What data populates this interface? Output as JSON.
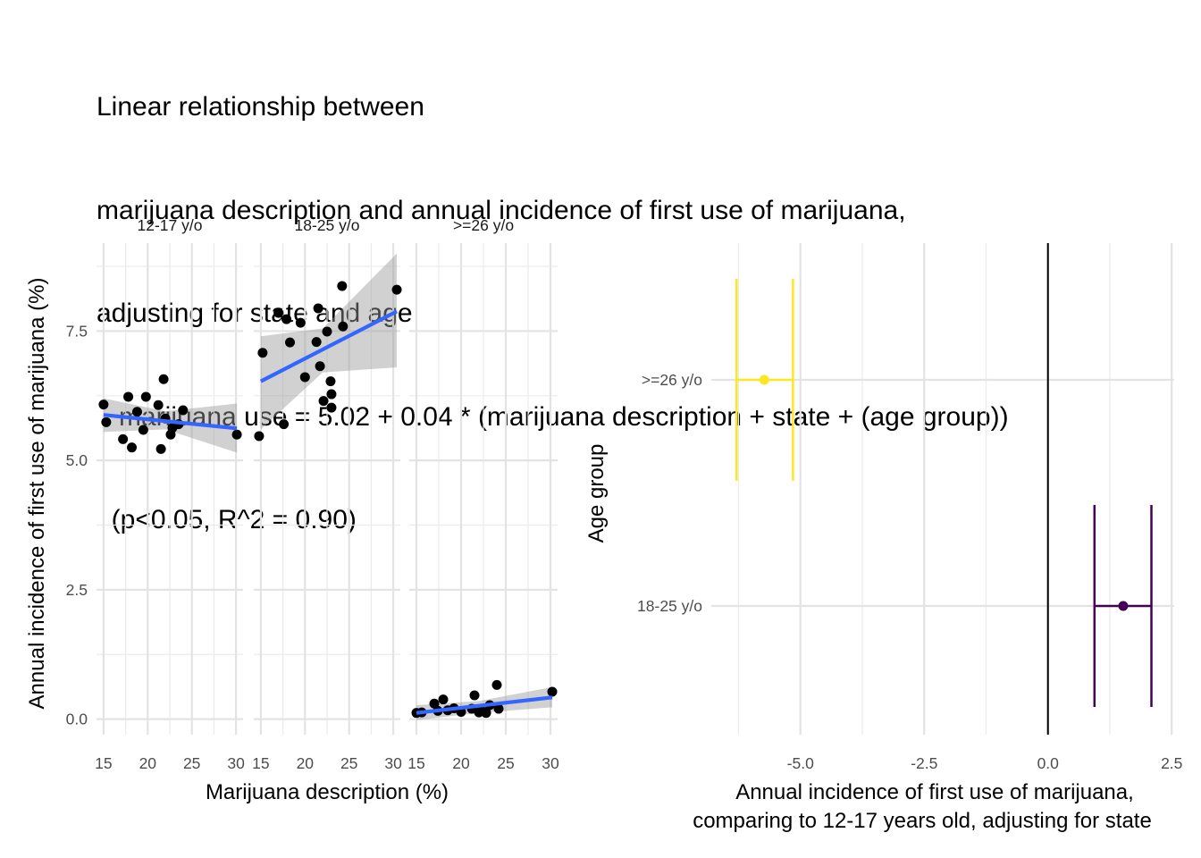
{
  "title_lines": [
    "Linear relationship between",
    "marijuana description and annual incidence of first use of marijuana,",
    "adjusting for state and age",
    "   marijuana use = 5.02 + 0.04 * (marijuana description + state + (age group))",
    "  (p<0.05, R^2 = 0.90)"
  ],
  "chart_data": [
    {
      "type": "scatter",
      "subtype": "faceted scatter with linear fit and confidence band",
      "xlabel": "Marijuana description (%)",
      "ylabel": "Annual incidence of first use of marijuana (%)",
      "xlim": [
        14.2,
        30.8
      ],
      "ylim": [
        -0.3,
        9.2
      ],
      "xticks": [
        15,
        20,
        25,
        30
      ],
      "xtick_labels": [
        "15",
        "20",
        "25",
        "30"
      ],
      "yticks": [
        0,
        2.5,
        5,
        7.5
      ],
      "ytick_labels": [
        "0.0",
        "2.5",
        "5.0",
        "7.5"
      ],
      "grid": true,
      "point_color": "#000000",
      "fit_color": "#3366ff",
      "band_color": "#999999",
      "facets": [
        {
          "label": "12-17 y/o",
          "points": [
            [
              15,
              6.08
            ],
            [
              15.3,
              5.74
            ],
            [
              17.2,
              5.41
            ],
            [
              17.8,
              6.23
            ],
            [
              18.2,
              5.25
            ],
            [
              18.8,
              5.94
            ],
            [
              19.5,
              5.59
            ],
            [
              19.8,
              6.23
            ],
            [
              21.2,
              6.07
            ],
            [
              21.5,
              5.22
            ],
            [
              21.8,
              6.57
            ],
            [
              22,
              5.81
            ],
            [
              22.6,
              5.5
            ],
            [
              22.8,
              5.63
            ],
            [
              23.5,
              5.7
            ],
            [
              24,
              5.97
            ],
            [
              30.1,
              5.5
            ]
          ],
          "fit": {
            "x": [
              15,
              30.1
            ],
            "y": [
              5.88,
              5.62
            ]
          },
          "band": {
            "x": [
              15,
              22,
              30.1
            ],
            "upper": [
              6.2,
              5.95,
              6.1
            ],
            "lower": [
              5.55,
              5.6,
              5.15
            ]
          }
        },
        {
          "label": "18-25 y/o",
          "points": [
            [
              14.8,
              5.47
            ],
            [
              15.2,
              7.08
            ],
            [
              17,
              7.85
            ],
            [
              17.6,
              5.7
            ],
            [
              17.9,
              7.73
            ],
            [
              18.3,
              7.28
            ],
            [
              19.5,
              7.66
            ],
            [
              20,
              6.61
            ],
            [
              21.3,
              7.29
            ],
            [
              21.5,
              7.94
            ],
            [
              21.7,
              6.82
            ],
            [
              22.1,
              6.15
            ],
            [
              22.5,
              7.49
            ],
            [
              22.9,
              6.53
            ],
            [
              23,
              6.28
            ],
            [
              23,
              6.02
            ],
            [
              24.3,
              7.59
            ],
            [
              30.4,
              8.3
            ],
            [
              24.2,
              8.37
            ]
          ],
          "fit": {
            "x": [
              15,
              30.4
            ],
            "y": [
              6.53,
              7.88
            ]
          },
          "band": {
            "x": [
              15,
              22,
              30.4
            ],
            "upper": [
              7.4,
              7.55,
              9.0
            ],
            "lower": [
              5.6,
              6.7,
              6.8
            ]
          }
        },
        {
          "label": ">=26 y/o",
          "points": [
            [
              15,
              0.12
            ],
            [
              15.6,
              0.13
            ],
            [
              17,
              0.3
            ],
            [
              17.4,
              0.16
            ],
            [
              18,
              0.38
            ],
            [
              18.5,
              0.17
            ],
            [
              19.2,
              0.21
            ],
            [
              20,
              0.14
            ],
            [
              21.2,
              0.2
            ],
            [
              21.5,
              0.46
            ],
            [
              22,
              0.13
            ],
            [
              22.3,
              0.16
            ],
            [
              22.8,
              0.12
            ],
            [
              23.2,
              0.27
            ],
            [
              24,
              0.66
            ],
            [
              24.2,
              0.2
            ],
            [
              30.2,
              0.53
            ]
          ],
          "fit": {
            "x": [
              15,
              30.2
            ],
            "y": [
              0.12,
              0.42
            ]
          },
          "band": {
            "x": [
              15,
              22,
              30.2
            ],
            "upper": [
              0.27,
              0.35,
              0.62
            ],
            "lower": [
              -0.02,
              0.12,
              0.23
            ]
          }
        }
      ]
    },
    {
      "type": "scatter",
      "subtype": "coefficient plot with error bars",
      "xlabel_lines": [
        "Annual incidence of first use of marijuana,",
        "comparing to 12-17 years old, adjusting for state"
      ],
      "ylabel": "Age group",
      "xlim": [
        -6.8,
        2.55
      ],
      "xticks": [
        -5,
        -2.5,
        0,
        2.5
      ],
      "xtick_labels": [
        "-5.0",
        "-2.5",
        "0.0",
        "2.5"
      ],
      "grid": true,
      "reference_line": 0,
      "categories": [
        ">=26 y/o",
        "18-25 y/o"
      ],
      "estimates": [
        {
          "group": ">=26 y/o",
          "estimate": -5.73,
          "lower": -6.29,
          "upper": -5.15,
          "color": "#fde725"
        },
        {
          "group": "18-25 y/o",
          "estimate": 1.52,
          "lower": 0.94,
          "upper": 2.09,
          "color": "#440154"
        }
      ]
    }
  ]
}
